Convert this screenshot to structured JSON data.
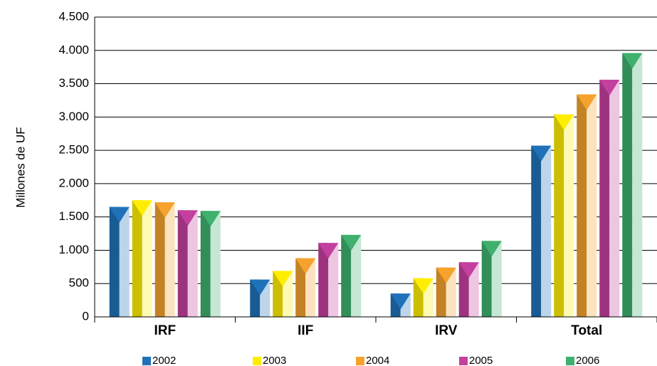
{
  "chart_data": {
    "type": "bar",
    "y_label": "Millones de UF",
    "categories": [
      "IRF",
      "IIF",
      "IRV",
      "Total"
    ],
    "series": [
      {
        "name": "2002",
        "color": "#1f72b8",
        "values": [
          1650,
          560,
          350,
          2570
        ]
      },
      {
        "name": "2003",
        "color": "#ffee00",
        "values": [
          1750,
          690,
          580,
          3040
        ]
      },
      {
        "name": "2004",
        "color": "#f5a22e",
        "values": [
          1720,
          880,
          740,
          3340
        ]
      },
      {
        "name": "2005",
        "color": "#c4409f",
        "values": [
          1600,
          1110,
          820,
          3560
        ]
      },
      {
        "name": "2006",
        "color": "#3fb06e",
        "values": [
          1590,
          1230,
          1140,
          3960
        ]
      }
    ],
    "ylim": [
      0,
      4500
    ],
    "yticks": [
      0,
      500,
      {
        "value": 1000,
        "label": "1.000"
      },
      {
        "value": 1500,
        "label": "1.500"
      },
      {
        "value": 2000,
        "label": "2.000"
      },
      {
        "value": 2500,
        "label": "2.500"
      },
      {
        "value": 3000,
        "label": "3.000"
      },
      {
        "value": 3500,
        "label": "3.500"
      },
      {
        "value": 4000,
        "label": "4.000"
      },
      {
        "value": 4500,
        "label": "4.500"
      }
    ],
    "grid": true
  }
}
